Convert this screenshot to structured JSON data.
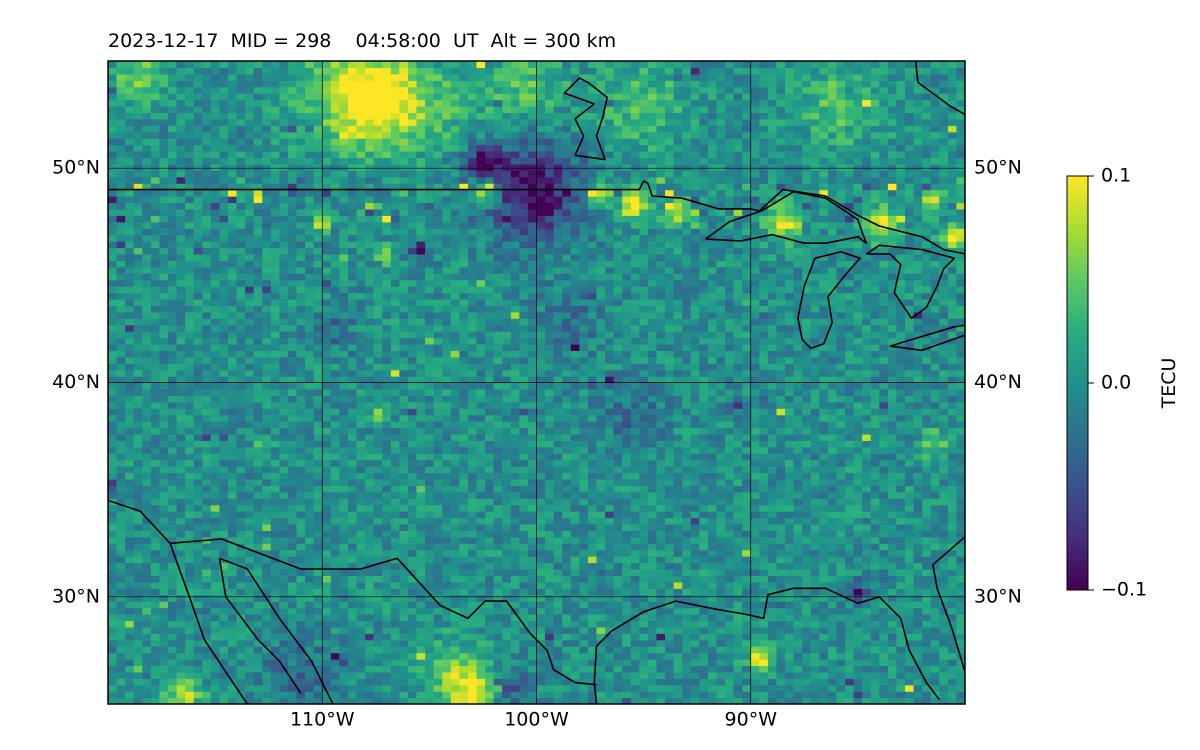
{
  "title": "2023-12-17  MID = 298    04:58:00  UT  Alt = 300 km",
  "map": {
    "lon_range": [
      -120,
      -80
    ],
    "lat_range": [
      25,
      55
    ],
    "parallels": [
      30,
      40,
      50
    ],
    "meridians": [
      -110,
      -100,
      -90
    ],
    "lat_labels": [
      "30°N",
      "40°N",
      "50°N"
    ],
    "lon_labels": [
      "110°W",
      "100°W",
      "90°W"
    ],
    "grid": true,
    "colormap": "viridis",
    "background_color": "#21918c"
  },
  "colorbar": {
    "label": "TECU",
    "ticks": [
      "0.1",
      "0.0",
      "−0.1"
    ],
    "tick_values": [
      0.1,
      0.0,
      -0.1
    ],
    "range": [
      -0.1,
      0.1
    ]
  },
  "anomalies": [
    {
      "lon": -107.3,
      "lat": 53.2,
      "value": 0.1,
      "extent": 2.0
    },
    {
      "lon": -109.0,
      "lat": 53.5,
      "value": 0.05,
      "extent": 2.5
    },
    {
      "lon": -118.5,
      "lat": 54.2,
      "value": 0.06,
      "extent": 1.2
    },
    {
      "lon": -102.5,
      "lat": 48.9,
      "value": 0.1,
      "extent": 0.6
    },
    {
      "lon": -100.2,
      "lat": 48.9,
      "value": -0.1,
      "extent": 2.2
    },
    {
      "lon": -102.5,
      "lat": 50.3,
      "value": -0.09,
      "extent": 0.8
    },
    {
      "lon": -97.0,
      "lat": 48.8,
      "value": 0.1,
      "extent": 0.5
    },
    {
      "lon": -95.5,
      "lat": 48.3,
      "value": 0.1,
      "extent": 0.7
    },
    {
      "lon": -93.5,
      "lat": 48.0,
      "value": 0.08,
      "extent": 0.6
    },
    {
      "lon": -88.5,
      "lat": 47.5,
      "value": 0.1,
      "extent": 0.8
    },
    {
      "lon": -84.0,
      "lat": 47.4,
      "value": 0.09,
      "extent": 0.8
    },
    {
      "lon": -80.5,
      "lat": 46.8,
      "value": 0.1,
      "extent": 0.6
    },
    {
      "lon": -81.5,
      "lat": 48.5,
      "value": 0.08,
      "extent": 0.5
    },
    {
      "lon": -110.0,
      "lat": 47.5,
      "value": 0.09,
      "extent": 0.4
    },
    {
      "lon": -107.0,
      "lat": 46.0,
      "value": 0.08,
      "extent": 0.4
    },
    {
      "lon": -89.5,
      "lat": 27.2,
      "value": 0.1,
      "extent": 0.6
    },
    {
      "lon": -103.0,
      "lat": 25.6,
      "value": 0.1,
      "extent": 1.0
    },
    {
      "lon": -116.5,
      "lat": 25.4,
      "value": 0.08,
      "extent": 0.8
    },
    {
      "lon": -95.0,
      "lat": 53.0,
      "value": 0.04,
      "extent": 2.0
    },
    {
      "lon": -100.5,
      "lat": 53.8,
      "value": 0.04,
      "extent": 1.8
    },
    {
      "lon": -104.5,
      "lat": 53.0,
      "value": 0.03,
      "extent": 2.0
    },
    {
      "lon": -86.0,
      "lat": 53.0,
      "value": 0.04,
      "extent": 2.0
    },
    {
      "lon": -104.0,
      "lat": 26.5,
      "value": 0.05,
      "extent": 1.5
    },
    {
      "lon": -111.0,
      "lat": 26.0,
      "value": -0.03,
      "extent": 2.0
    },
    {
      "lon": -85.0,
      "lat": 30.2,
      "value": -0.08,
      "extent": 0.5
    },
    {
      "lon": -101.5,
      "lat": 25.7,
      "value": -0.04,
      "extent": 1.2
    },
    {
      "lon": -90.5,
      "lat": 39.0,
      "value": -0.07,
      "extent": 0.4
    },
    {
      "lon": -107.3,
      "lat": 38.6,
      "value": 0.09,
      "extent": 0.3
    },
    {
      "lon": -105.5,
      "lat": 46.2,
      "value": -0.09,
      "extent": 0.4
    },
    {
      "lon": -112.5,
      "lat": 47.7,
      "value": -0.05,
      "extent": 0.3
    },
    {
      "lon": -109.5,
      "lat": 42.5,
      "value": -0.03,
      "extent": 1.0
    },
    {
      "lon": -98.5,
      "lat": 43.0,
      "value": -0.03,
      "extent": 1.5
    },
    {
      "lon": -95.5,
      "lat": 38.5,
      "value": -0.03,
      "extent": 1.5
    },
    {
      "lon": -81.5,
      "lat": 37.2,
      "value": 0.06,
      "extent": 0.6
    }
  ],
  "coastlines": [
    {
      "name": "us-canada-border",
      "points": [
        [
          -120,
          49.0
        ],
        [
          -95.2,
          49.0
        ],
        [
          -95.0,
          49.4
        ],
        [
          -94.8,
          49.3
        ],
        [
          -94.6,
          48.7
        ],
        [
          -93.2,
          48.6
        ],
        [
          -91.5,
          48.1
        ],
        [
          -90.0,
          48.1
        ],
        [
          -89.6,
          48.0
        ]
      ]
    },
    {
      "name": "lake-superior",
      "points": [
        [
          -92.1,
          46.7
        ],
        [
          -90.5,
          46.6
        ],
        [
          -89.0,
          46.9
        ],
        [
          -87.5,
          46.5
        ],
        [
          -86.5,
          46.5
        ],
        [
          -85.0,
          46.8
        ],
        [
          -84.6,
          46.5
        ],
        [
          -84.8,
          47.0
        ],
        [
          -85.0,
          47.6
        ],
        [
          -86.5,
          48.6
        ],
        [
          -88.0,
          48.9
        ],
        [
          -89.5,
          48.0
        ],
        [
          -91.0,
          47.5
        ],
        [
          -92.1,
          46.7
        ]
      ]
    },
    {
      "name": "lake-michigan",
      "points": [
        [
          -87.0,
          45.8
        ],
        [
          -87.5,
          44.5
        ],
        [
          -87.8,
          43.0
        ],
        [
          -87.6,
          42.0
        ],
        [
          -87.2,
          41.6
        ],
        [
          -86.6,
          41.8
        ],
        [
          -86.2,
          42.8
        ],
        [
          -86.4,
          44.0
        ],
        [
          -85.6,
          45.0
        ],
        [
          -84.9,
          45.8
        ],
        [
          -85.8,
          46.1
        ],
        [
          -87.0,
          45.8
        ]
      ]
    },
    {
      "name": "lake-huron",
      "points": [
        [
          -84.6,
          46.0
        ],
        [
          -83.5,
          46.0
        ],
        [
          -83.0,
          45.5
        ],
        [
          -83.3,
          44.2
        ],
        [
          -82.5,
          43.0
        ],
        [
          -81.8,
          43.5
        ],
        [
          -81.3,
          44.5
        ],
        [
          -81.0,
          45.3
        ],
        [
          -80.5,
          45.8
        ],
        [
          -82.0,
          46.2
        ],
        [
          -84.0,
          46.4
        ],
        [
          -84.6,
          46.0
        ]
      ]
    },
    {
      "name": "lake-erie",
      "points": [
        [
          -83.5,
          41.7
        ],
        [
          -82.0,
          41.5
        ],
        [
          -80.0,
          42.2
        ],
        [
          -79.0,
          42.8
        ],
        [
          -80.5,
          42.6
        ],
        [
          -82.5,
          42.0
        ],
        [
          -83.5,
          41.7
        ]
      ]
    },
    {
      "name": "canada-east-shore",
      "points": [
        [
          -80.0,
          46.0
        ],
        [
          -81.0,
          46.2
        ],
        [
          -82.0,
          46.8
        ],
        [
          -84.0,
          47.3
        ],
        [
          -85.0,
          47.8
        ],
        [
          -86.5,
          48.7
        ],
        [
          -88.5,
          49.0
        ],
        [
          -89.6,
          48.0
        ]
      ]
    },
    {
      "name": "hudson-bay-shore",
      "points": [
        [
          -80.0,
          52.5
        ],
        [
          -80.7,
          52.9
        ],
        [
          -82.2,
          54.0
        ],
        [
          -82.3,
          55.0
        ]
      ]
    },
    {
      "name": "lake-winnipeg",
      "points": [
        [
          -98.2,
          50.6
        ],
        [
          -96.8,
          50.4
        ],
        [
          -97.2,
          51.5
        ],
        [
          -96.9,
          52.4
        ],
        [
          -96.7,
          53.3
        ],
        [
          -97.6,
          54.0
        ],
        [
          -98.0,
          54.2
        ],
        [
          -98.7,
          53.5
        ],
        [
          -97.3,
          53.0
        ],
        [
          -98.2,
          52.3
        ],
        [
          -97.8,
          51.5
        ],
        [
          -98.2,
          50.6
        ]
      ]
    },
    {
      "name": "us-mexico-border",
      "points": [
        [
          -117.1,
          32.5
        ],
        [
          -114.7,
          32.7
        ],
        [
          -111.0,
          31.3
        ],
        [
          -108.2,
          31.3
        ],
        [
          -106.5,
          31.8
        ],
        [
          -104.5,
          29.6
        ],
        [
          -103.2,
          29.0
        ],
        [
          -102.4,
          29.8
        ],
        [
          -101.4,
          29.8
        ],
        [
          -100.3,
          28.3
        ],
        [
          -99.5,
          27.5
        ],
        [
          -99.2,
          26.6
        ],
        [
          -98.2,
          26.0
        ],
        [
          -97.2,
          25.9
        ]
      ]
    },
    {
      "name": "baja-and-pacific",
      "points": [
        [
          -120.0,
          34.5
        ],
        [
          -118.5,
          34.0
        ],
        [
          -117.1,
          32.5
        ],
        [
          -116.2,
          30.0
        ],
        [
          -115.5,
          28.0
        ],
        [
          -114.5,
          26.5
        ],
        [
          -113.5,
          25.0
        ]
      ]
    },
    {
      "name": "gulf-of-california",
      "points": [
        [
          -114.8,
          31.8
        ],
        [
          -114.5,
          30.0
        ],
        [
          -113.0,
          28.0
        ],
        [
          -112.0,
          27.0
        ],
        [
          -111.0,
          25.5
        ]
      ]
    },
    {
      "name": "mexico-west-coast",
      "points": [
        [
          -114.8,
          31.8
        ],
        [
          -113.5,
          31.3
        ],
        [
          -112.0,
          29.0
        ],
        [
          -110.5,
          27.0
        ],
        [
          -109.5,
          25.0
        ]
      ]
    },
    {
      "name": "gulf-coast",
      "points": [
        [
          -97.2,
          25.0
        ],
        [
          -97.3,
          26.0
        ],
        [
          -97.2,
          27.7
        ],
        [
          -96.5,
          28.4
        ],
        [
          -95.0,
          29.3
        ],
        [
          -93.5,
          29.8
        ],
        [
          -91.5,
          29.4
        ],
        [
          -90.3,
          29.2
        ],
        [
          -89.4,
          29.0
        ],
        [
          -89.2,
          30.1
        ],
        [
          -88.0,
          30.4
        ],
        [
          -86.5,
          30.4
        ],
        [
          -85.0,
          29.7
        ],
        [
          -84.0,
          30.0
        ],
        [
          -83.0,
          29.0
        ],
        [
          -82.6,
          27.5
        ],
        [
          -81.8,
          26.0
        ],
        [
          -81.2,
          25.2
        ]
      ]
    },
    {
      "name": "florida-atlantic",
      "points": [
        [
          -80.0,
          26.5
        ],
        [
          -80.6,
          28.5
        ],
        [
          -81.3,
          30.4
        ],
        [
          -81.5,
          31.5
        ],
        [
          -80.0,
          32.8
        ]
      ]
    }
  ]
}
